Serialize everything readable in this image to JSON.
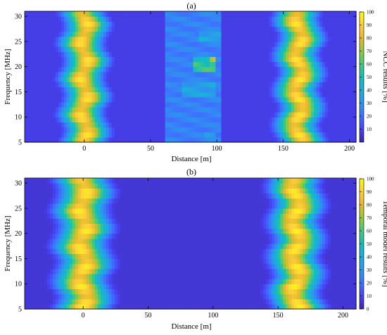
{
  "chart_data": [
    {
      "type": "heatmap",
      "title": "(a)",
      "xlabel": "Distance [m]",
      "ylabel": "Frequency [MHz]",
      "colorbar_label": "NCC results [%]",
      "xlim": [
        -45,
        205
      ],
      "ylim": [
        5,
        31
      ],
      "xticks": [
        0,
        50,
        100,
        150,
        200
      ],
      "yticks": [
        5,
        10,
        15,
        20,
        25,
        30
      ],
      "cticks": [
        10,
        20,
        30,
        40,
        50,
        60,
        70,
        80,
        90,
        100
      ],
      "clim": [
        0,
        100
      ],
      "background_value": 8,
      "bands": [
        {
          "center": 0,
          "half_width": 14,
          "peak": 95,
          "wobble": 3
        },
        {
          "center": 162,
          "half_width": 14,
          "peak": 96,
          "wobble": 3
        }
      ],
      "patches": [
        {
          "x0": 60,
          "x1": 104,
          "y0": 5.5,
          "y1": 31,
          "value": 28
        },
        {
          "x0": 82,
          "x1": 100,
          "y0": 19.5,
          "y1": 22,
          "value": 62
        },
        {
          "x0": 94,
          "x1": 100,
          "y0": 19.8,
          "y1": 21.8,
          "value": 80
        },
        {
          "x0": 86,
          "x1": 104,
          "y0": 24.8,
          "y1": 27.2,
          "value": 42
        },
        {
          "x0": 74,
          "x1": 100,
          "y0": 14.5,
          "y1": 16.5,
          "value": 40
        },
        {
          "x0": 90,
          "x1": 100,
          "y0": 5.8,
          "y1": 7.2,
          "value": 40
        }
      ]
    },
    {
      "type": "heatmap",
      "title": "(b)",
      "xlabel": "Distance [m]",
      "ylabel": "Frequency [MHz]",
      "colorbar_label": "Temporal model results [%]",
      "xlim": [
        -45,
        210
      ],
      "ylim": [
        5,
        31
      ],
      "xticks": [
        0,
        50,
        100,
        150,
        200
      ],
      "yticks": [
        5,
        10,
        15,
        20,
        25,
        30
      ],
      "cticks": [
        0,
        10,
        20,
        30,
        40,
        50,
        60,
        70,
        80,
        90,
        100
      ],
      "clim": [
        0,
        100
      ],
      "background_value": 6,
      "bands": [
        {
          "center": 0,
          "half_width": 17,
          "peak": 97,
          "wobble": 3
        },
        {
          "center": 164,
          "half_width": 16,
          "peak": 98,
          "wobble": 3
        }
      ],
      "patches": []
    }
  ]
}
